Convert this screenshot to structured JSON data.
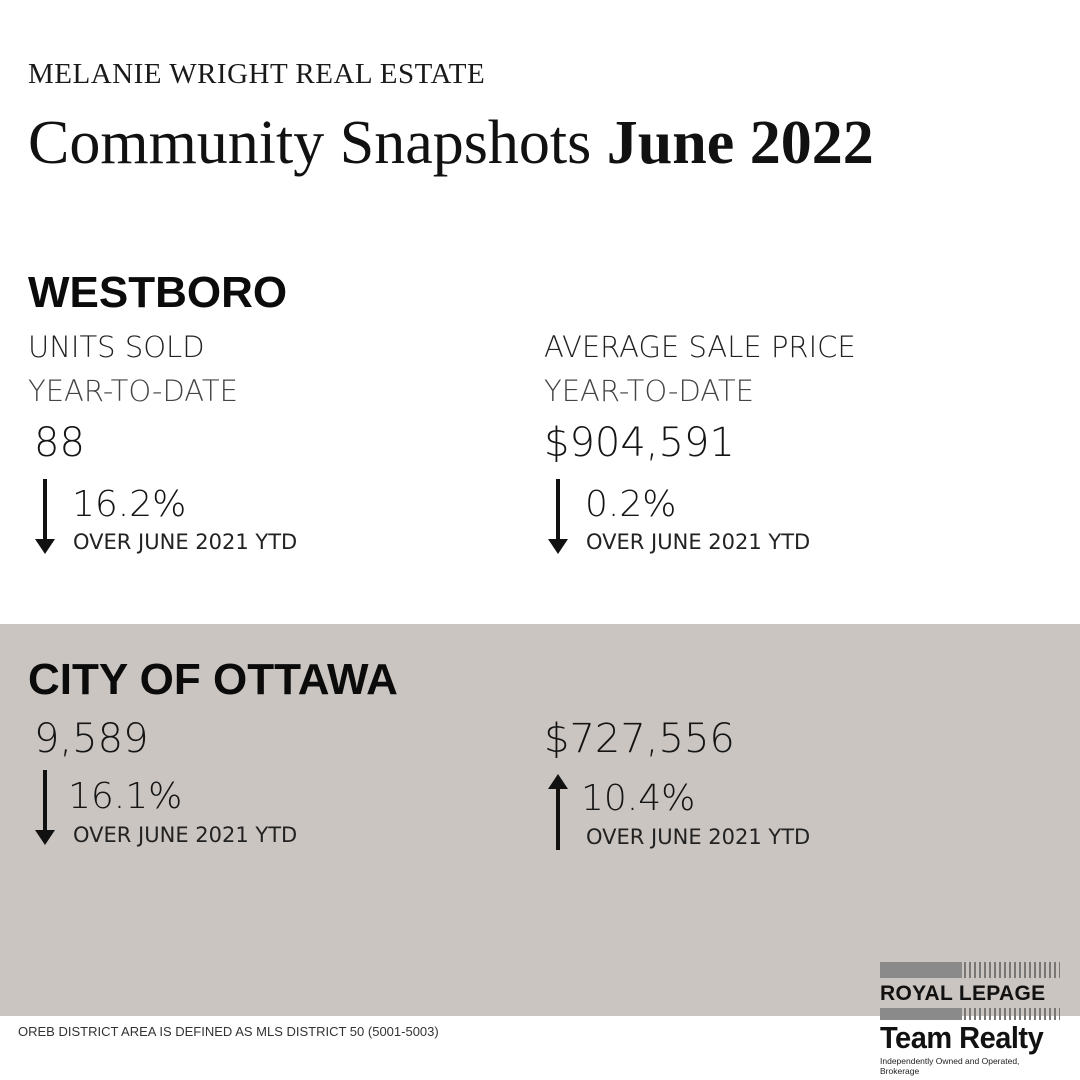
{
  "header": {
    "brand": "MELANIE WRIGHT REAL ESTATE",
    "title_regular": "Community Snapshots",
    "title_bold": "June 2022"
  },
  "westboro": {
    "title": "WESTBORO",
    "units": {
      "label": "UNITS SOLD",
      "period": "YEAR-TO-DATE",
      "value": "88",
      "change": "16.2%",
      "direction": "down",
      "comparison": "OVER JUNE 2021 YTD"
    },
    "price": {
      "label": "AVERAGE SALE PRICE",
      "period": "YEAR-TO-DATE",
      "value": "$904,591",
      "change": "0.2%",
      "direction": "down",
      "comparison": "OVER JUNE 2021 YTD"
    }
  },
  "ottawa": {
    "title": "CITY OF OTTAWA",
    "units": {
      "value": "9,589",
      "change": "16.1%",
      "direction": "down",
      "comparison": "OVER JUNE 2021 YTD"
    },
    "price": {
      "value": "$727,556",
      "change": "10.4%",
      "direction": "up",
      "comparison": "OVER JUNE 2021 YTD"
    }
  },
  "footer": {
    "footnote": "OREB DISTRICT AREA IS DEFINED AS MLS DISTRICT 50 (5001-5003)"
  },
  "logo": {
    "line1": "ROYAL LEPAGE",
    "line2": "Team Realty",
    "tagline": "Independently Owned and Operated, Brokerage"
  },
  "colors": {
    "band": "#cbc5c1",
    "text": "#111111",
    "background": "#ffffff"
  }
}
